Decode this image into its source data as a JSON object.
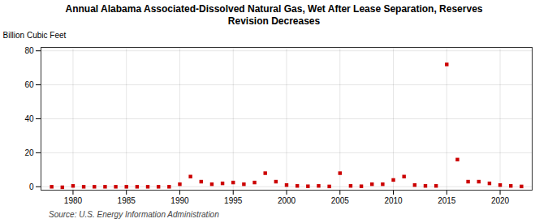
{
  "chart_data": {
    "type": "scatter",
    "title": "Annual Alabama Associated-Dissolved Natural Gas, Wet After Lease Separation, Reserves\nRevision Decreases",
    "ylabel": "Billion Cubic Feet",
    "source": "Source: U.S. Energy Information Administration",
    "color": "#cc0000",
    "marker": "square",
    "grid": true,
    "xlim": [
      1977,
      2023
    ],
    "ylim": [
      -2,
      82
    ],
    "xticks": [
      1980,
      1985,
      1990,
      1995,
      2000,
      2005,
      2010,
      2015,
      2020
    ],
    "yticks": [
      0,
      20,
      40,
      60,
      80
    ],
    "x": [
      1978,
      1979,
      1980,
      1981,
      1982,
      1983,
      1984,
      1985,
      1986,
      1987,
      1988,
      1989,
      1990,
      1991,
      1992,
      1993,
      1994,
      1995,
      1996,
      1997,
      1998,
      1999,
      2000,
      2001,
      2002,
      2003,
      2004,
      2005,
      2006,
      2007,
      2008,
      2009,
      2010,
      2011,
      2012,
      2013,
      2014,
      2015,
      2016,
      2017,
      2018,
      2019,
      2020,
      2021,
      2022
    ],
    "values": [
      0.0,
      -0.3,
      0.5,
      0.0,
      0.0,
      0.0,
      0.0,
      0.0,
      0.0,
      0.0,
      0.0,
      0.0,
      1.5,
      6.0,
      3.0,
      1.5,
      2.0,
      2.5,
      1.5,
      2.5,
      8.0,
      3.0,
      1.0,
      0.5,
      0.3,
      0.5,
      0.2,
      8.0,
      0.5,
      0.3,
      1.5,
      1.5,
      4.0,
      6.0,
      1.0,
      0.5,
      0.5,
      72.0,
      16.0,
      3.0,
      3.0,
      2.0,
      1.0,
      0.5,
      0.2
    ]
  }
}
